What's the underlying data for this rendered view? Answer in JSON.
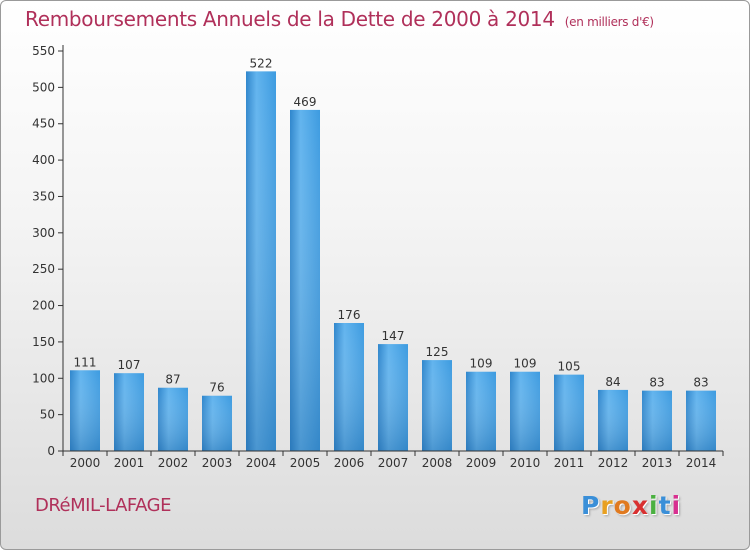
{
  "title": "Remboursements Annuels de la Dette de 2000 à 2014",
  "unit": "(en milliers d'€)",
  "commune": "DRéMIL-LAFAGE",
  "logo": {
    "letters": [
      "P",
      "r",
      "o",
      "x",
      "i",
      "t",
      "i"
    ],
    "colors": [
      "#3a8fd8",
      "#e8a020",
      "#e07a20",
      "#d83030",
      "#4ab040",
      "#3a8fd8",
      "#d83090"
    ]
  },
  "colors": {
    "bar": "#3d9be0",
    "bar_light": "#62b4ee",
    "bar_dark": "#2a7ec4",
    "title": "#b0305a",
    "axis": "#333333"
  },
  "chart_data": {
    "type": "bar",
    "categories": [
      "2000",
      "2001",
      "2002",
      "2003",
      "2004",
      "2005",
      "2006",
      "2007",
      "2008",
      "2009",
      "2010",
      "2011",
      "2012",
      "2013",
      "2014"
    ],
    "values": [
      111,
      107,
      87,
      76,
      522,
      469,
      176,
      147,
      125,
      109,
      109,
      105,
      84,
      83,
      83
    ],
    "ylim": [
      0,
      550
    ],
    "yticks": [
      0,
      50,
      100,
      150,
      200,
      250,
      300,
      350,
      400,
      450,
      500,
      550
    ],
    "grid": false,
    "legend": "none"
  }
}
